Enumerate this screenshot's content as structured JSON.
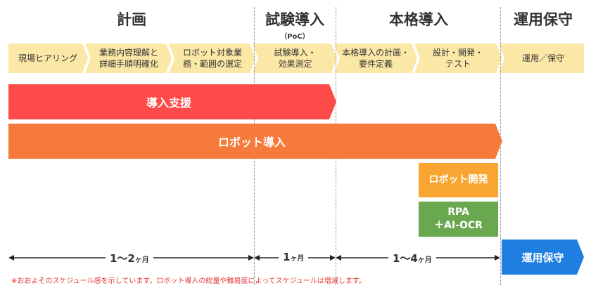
{
  "phases": {
    "plan": "計画",
    "trial": "試験導入",
    "trial_sub": "（PoC）",
    "full": "本格導入",
    "ops": "運用保守"
  },
  "steps": [
    "現場ヒアリング",
    "業務内容理解と\n詳細手順明確化",
    "ロボット対象業\n務・範囲の選定",
    "試験導入・\n効果測定",
    "本格導入の計画・\n要件定義",
    "設計・開発・\nテスト",
    "運用／保守"
  ],
  "bars": {
    "support": "導入支援",
    "robot_intro": "ロボット導入",
    "robot_dev": "ロボット開発",
    "rpa_ocr": "RPA\n＋AI-OCR"
  },
  "timeline": {
    "seg1_num": "1～2",
    "seg1_unit": "ヶ月",
    "seg2_num": "1",
    "seg2_unit": "ヶ月",
    "seg3_num": "1～4",
    "seg3_unit": "ヶ月",
    "ops": "運用保守"
  },
  "footnote": "※おおよそのスケジュール感を示しています。ロボット導入の総量や難易度によってスケジュールは増減します。",
  "colors": {
    "step_fill": "#fbe7a6",
    "red": "#ff4a4a",
    "orange": "#f67a3c",
    "yellow_orange": "#f8a531",
    "green": "#6aa84f",
    "blue": "#1f7fe0"
  }
}
